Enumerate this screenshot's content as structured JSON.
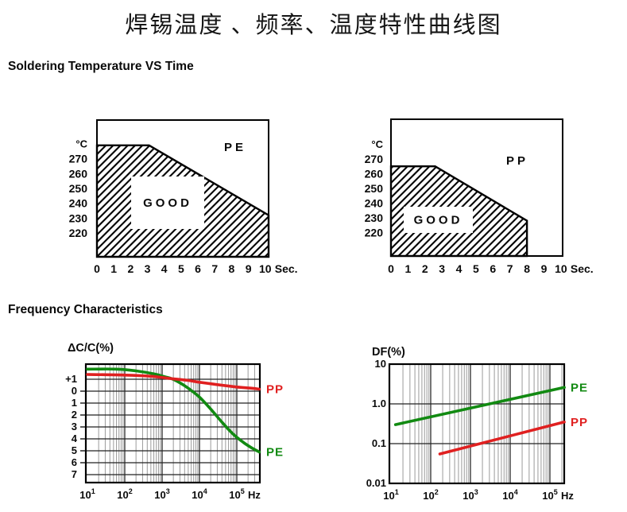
{
  "page": {
    "title": "焊锡温度 、频率、温度特性曲线图"
  },
  "sections": {
    "soldering": {
      "heading": "Soldering Temperature VS Time"
    },
    "frequency": {
      "heading": "Frequency Characteristics"
    }
  },
  "colors": {
    "pe": "#128a12",
    "pp": "#e02020",
    "ink": "#000000",
    "grid_major": "#3a3a3a",
    "grid_minor": "#9a9a9a",
    "hatch": "#000000"
  },
  "chart_data": [
    {
      "id": "solder-pe",
      "type": "area",
      "material_label": "PE",
      "region_label": "GOOD",
      "y_unit": "°C",
      "x_unit": "Sec.",
      "x_ticks": [
        0,
        1,
        2,
        3,
        4,
        5,
        6,
        7,
        8,
        9,
        10
      ],
      "y_ticks": [
        270,
        260,
        250,
        240,
        230,
        220
      ],
      "x_range": [
        0,
        10.2
      ],
      "y_range": [
        204,
        296
      ],
      "boundary_points": [
        [
          0,
          279
        ],
        [
          3.1,
          279
        ],
        [
          10.2,
          232
        ]
      ],
      "region_fill": "diagonal-hatch",
      "note": "hatched area below boundary = GOOD soldering zone"
    },
    {
      "id": "solder-pp",
      "type": "area",
      "material_label": "PP",
      "region_label": "GOOD",
      "y_unit": "°C",
      "x_unit": "Sec.",
      "x_ticks": [
        0,
        1,
        2,
        3,
        4,
        5,
        6,
        7,
        8,
        9,
        10
      ],
      "y_ticks": [
        270,
        260,
        250,
        240,
        230,
        220
      ],
      "x_range": [
        0,
        10.1
      ],
      "y_range": [
        204,
        297
      ],
      "boundary_points": [
        [
          0,
          265
        ],
        [
          2.6,
          265
        ],
        [
          8,
          228
        ]
      ],
      "region_fill": "diagonal-hatch",
      "note": "hatched area below boundary = GOOD soldering zone, drops vertically at 8 sec"
    },
    {
      "id": "freq-dcc",
      "type": "line",
      "axis_title": "ΔC/C(%)",
      "x_scale": "log",
      "x_unit": "Hz",
      "x_ticks": [
        {
          "base": "10",
          "exp": "1"
        },
        {
          "base": "10",
          "exp": "2"
        },
        {
          "base": "10",
          "exp": "3"
        },
        {
          "base": "10",
          "exp": "4"
        },
        {
          "base": "10",
          "exp": "5"
        }
      ],
      "x_range": [
        10,
        410000
      ],
      "y_range": [
        -7.67,
        2.27
      ],
      "y_gridlines": [
        1,
        0,
        -1,
        -2,
        -3,
        -4,
        -5,
        -6,
        -7
      ],
      "y_tick_labels": [
        {
          "label": "+1",
          "value": 1,
          "dash": false
        },
        {
          "label": "0",
          "value": 0,
          "dash": true
        },
        {
          "label": "1",
          "value": -1,
          "dash": true
        },
        {
          "label": "2",
          "value": -2,
          "dash": true
        },
        {
          "label": "3",
          "value": -3,
          "dash": true
        },
        {
          "label": "4",
          "value": -4,
          "dash": true
        },
        {
          "label": "5",
          "value": -5,
          "dash": true
        },
        {
          "label": "6",
          "value": -6,
          "dash": true
        },
        {
          "label": "7",
          "value": -7,
          "dash": false
        }
      ],
      "series": [
        {
          "name": "PE",
          "color_key": "pe",
          "points": [
            [
              10,
              1.85
            ],
            [
              60,
              1.85
            ],
            [
              200,
              1.7
            ],
            [
              600,
              1.45
            ],
            [
              1200,
              1.2
            ],
            [
              1800,
              1.05
            ],
            [
              3000,
              0.7
            ],
            [
              5000,
              0.25
            ],
            [
              10000,
              -0.5
            ],
            [
              20000,
              -1.5
            ],
            [
              40000,
              -2.6
            ],
            [
              80000,
              -3.6
            ],
            [
              150000,
              -4.3
            ],
            [
              250000,
              -4.75
            ],
            [
              400000,
              -5.1
            ]
          ]
        },
        {
          "name": "PP",
          "color_key": "pp",
          "points": [
            [
              10,
              1.4
            ],
            [
              100,
              1.35
            ],
            [
              500,
              1.25
            ],
            [
              1800,
              1.05
            ],
            [
              5000,
              0.9
            ],
            [
              10000,
              0.75
            ],
            [
              30000,
              0.55
            ],
            [
              100000,
              0.35
            ],
            [
              250000,
              0.25
            ],
            [
              400000,
              0.17
            ]
          ]
        }
      ]
    },
    {
      "id": "freq-df",
      "type": "line",
      "axis_title": "DF(%)",
      "x_scale": "log",
      "y_scale": "log",
      "x_unit": "Hz",
      "x_ticks": [
        {
          "base": "10",
          "exp": "1"
        },
        {
          "base": "10",
          "exp": "2"
        },
        {
          "base": "10",
          "exp": "3"
        },
        {
          "base": "10",
          "exp": "4"
        },
        {
          "base": "10",
          "exp": "5"
        }
      ],
      "x_range": [
        10,
        230000
      ],
      "y_range": [
        0.01,
        10
      ],
      "y_gridlines": [
        1,
        0.1
      ],
      "y_tick_labels": [
        {
          "label": "10",
          "value": 10
        },
        {
          "label": "1.0",
          "value": 1
        },
        {
          "label": "0.1",
          "value": 0.1
        },
        {
          "label": "0.01",
          "value": 0.01
        }
      ],
      "series": [
        {
          "name": "PE",
          "color_key": "pe",
          "points": [
            [
              13,
              0.3
            ],
            [
              230000,
              2.6
            ]
          ]
        },
        {
          "name": "PP",
          "color_key": "pp",
          "points": [
            [
              170,
              0.055
            ],
            [
              230000,
              0.35
            ]
          ]
        }
      ]
    }
  ]
}
